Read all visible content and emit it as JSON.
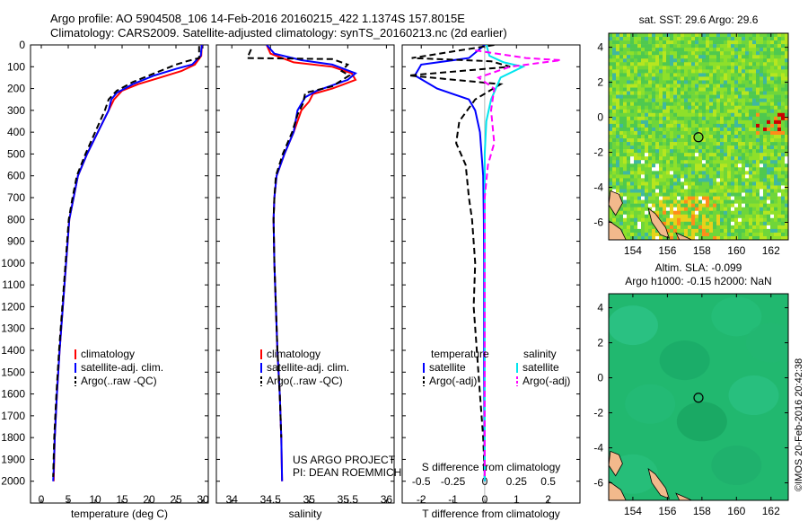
{
  "title_line1": "Argo profile: AO 5904508_106 14-Feb-2016 20160215_422 1.1374S 157.8015E",
  "title_line2": "Climatology: CARS2009. Satellite-adjusted climatology: synTS_20160213.nc (2d earlier)",
  "credit": "©IMOS 20-Feb-2016 20:42:38",
  "project_line1": "US ARGO PROJECT",
  "project_line2": "PI: DEAN ROEMMICH",
  "colors": {
    "climatology": "#ff0000",
    "satellite": "#0000ff",
    "argo": "#000000",
    "satellite_s": "#00e5ee",
    "argo_s": "#ff00ff"
  },
  "chart_data": [
    {
      "type": "line",
      "xlabel": "temperature (deg C)",
      "xlim": [
        -2,
        31
      ],
      "xticks": [
        0,
        5,
        10,
        15,
        20,
        25,
        30
      ],
      "ylim": [
        0,
        2100
      ],
      "yticks": [
        0,
        100,
        200,
        300,
        400,
        500,
        600,
        700,
        800,
        900,
        1000,
        1100,
        1200,
        1300,
        1400,
        1500,
        1600,
        1700,
        1800,
        1900,
        2000
      ],
      "legend": [
        "climatology",
        "satellite-adj. clim.",
        "Argo(..raw -QC)"
      ],
      "legend_position": "lower-left",
      "series": [
        {
          "name": "climatology",
          "color": "#ff0000",
          "dashed": false,
          "points": [
            [
              29.8,
              0
            ],
            [
              29.7,
              50
            ],
            [
              28.5,
              90
            ],
            [
              26,
              120
            ],
            [
              22,
              150
            ],
            [
              18,
              180
            ],
            [
              15,
              210
            ],
            [
              13.5,
              250
            ],
            [
              12.5,
              300
            ],
            [
              10.5,
              400
            ],
            [
              8.5,
              500
            ],
            [
              6.8,
              600
            ],
            [
              6,
              700
            ],
            [
              5.2,
              800
            ],
            [
              4.6,
              1000
            ],
            [
              4,
              1200
            ],
            [
              3.4,
              1400
            ],
            [
              2.9,
              1600
            ],
            [
              2.5,
              1800
            ],
            [
              2.3,
              2000
            ]
          ]
        },
        {
          "name": "satellite-adj. clim.",
          "color": "#0000ff",
          "dashed": false,
          "points": [
            [
              29.8,
              0
            ],
            [
              29.6,
              50
            ],
            [
              28,
              90
            ],
            [
              25,
              110
            ],
            [
              21,
              140
            ],
            [
              17,
              180
            ],
            [
              14,
              220
            ],
            [
              13,
              250
            ],
            [
              12.5,
              300
            ],
            [
              10.5,
              400
            ],
            [
              8.5,
              500
            ],
            [
              6.8,
              600
            ],
            [
              6,
              700
            ],
            [
              5.2,
              800
            ],
            [
              4.6,
              1000
            ],
            [
              4,
              1200
            ],
            [
              3.4,
              1400
            ],
            [
              2.9,
              1600
            ],
            [
              2.5,
              1800
            ],
            [
              2.3,
              1950
            ],
            [
              2.2,
              2000
            ]
          ]
        },
        {
          "name": "Argo(..raw -QC)",
          "color": "#000000",
          "dashed": true,
          "points": [
            [
              29.3,
              5
            ],
            [
              29.3,
              60
            ],
            [
              27,
              75
            ],
            [
              25,
              90
            ],
            [
              21,
              130
            ],
            [
              17,
              170
            ],
            [
              14,
              210
            ],
            [
              12.5,
              250
            ],
            [
              11.8,
              300
            ],
            [
              10,
              400
            ],
            [
              8.2,
              500
            ],
            [
              6.6,
              600
            ],
            [
              5.8,
              700
            ],
            [
              5.1,
              800
            ],
            [
              4.5,
              1000
            ],
            [
              3.9,
              1200
            ],
            [
              3.3,
              1400
            ],
            [
              2.8,
              1600
            ],
            [
              2.4,
              1800
            ],
            [
              2.2,
              1980
            ]
          ]
        }
      ]
    },
    {
      "type": "line",
      "xlabel": "salinity",
      "xlim": [
        33.8,
        36.1
      ],
      "xticks": [
        34,
        34.5,
        35,
        35.5,
        36
      ],
      "ylim": [
        0,
        2100
      ],
      "legend": [
        "climatology",
        "satellite-adj. clim.",
        "Argo(..raw -QC)"
      ],
      "legend_position": "lower-left",
      "series": [
        {
          "name": "climatology",
          "color": "#ff0000",
          "dashed": false,
          "points": [
            [
              34.45,
              0
            ],
            [
              34.5,
              40
            ],
            [
              34.8,
              80
            ],
            [
              35.3,
              100
            ],
            [
              35.55,
              130
            ],
            [
              35.6,
              160
            ],
            [
              35.3,
              200
            ],
            [
              35.05,
              225
            ],
            [
              35,
              260
            ],
            [
              34.9,
              300
            ],
            [
              34.8,
              400
            ],
            [
              34.68,
              500
            ],
            [
              34.58,
              600
            ],
            [
              34.55,
              700
            ],
            [
              34.54,
              800
            ],
            [
              34.55,
              1000
            ],
            [
              34.57,
              1200
            ],
            [
              34.59,
              1400
            ],
            [
              34.62,
              1600
            ],
            [
              34.64,
              1800
            ],
            [
              34.65,
              2000
            ]
          ]
        },
        {
          "name": "satellite-adj. clim.",
          "color": "#0000ff",
          "dashed": false,
          "points": [
            [
              34.45,
              0
            ],
            [
              34.55,
              40
            ],
            [
              34.9,
              70
            ],
            [
              35.3,
              90
            ],
            [
              35.6,
              130
            ],
            [
              35.5,
              160
            ],
            [
              35.1,
              210
            ],
            [
              34.95,
              240
            ],
            [
              34.85,
              300
            ],
            [
              34.8,
              400
            ],
            [
              34.68,
              500
            ],
            [
              34.58,
              600
            ],
            [
              34.55,
              700
            ],
            [
              34.54,
              800
            ],
            [
              34.55,
              1000
            ],
            [
              34.57,
              1200
            ],
            [
              34.59,
              1400
            ],
            [
              34.62,
              1600
            ],
            [
              34.64,
              1800
            ],
            [
              34.65,
              2000
            ]
          ]
        },
        {
          "name": "Argo(..raw -QC)",
          "color": "#000000",
          "dashed": true,
          "points": [
            [
              34.25,
              20
            ],
            [
              34.2,
              60
            ],
            [
              35.3,
              65
            ],
            [
              35.5,
              90
            ],
            [
              35.42,
              120
            ],
            [
              35.52,
              140
            ],
            [
              35.3,
              190
            ],
            [
              34.95,
              220
            ],
            [
              34.92,
              270
            ],
            [
              34.85,
              320
            ],
            [
              34.78,
              400
            ],
            [
              34.66,
              500
            ],
            [
              34.57,
              600
            ],
            [
              34.55,
              700
            ],
            [
              34.54,
              800
            ],
            [
              34.55,
              1000
            ],
            [
              34.57,
              1200
            ],
            [
              34.59,
              1400
            ],
            [
              34.62,
              1600
            ],
            [
              34.64,
              1800
            ]
          ]
        }
      ]
    },
    {
      "type": "line",
      "xlabel": "T difference from climatology",
      "xlabel_top": "S difference from climatology",
      "xlim": [
        -2.6,
        3.0
      ],
      "xticks": [
        -2,
        -1,
        0,
        1,
        2
      ],
      "xticks_top": [
        -0.5,
        -0.25,
        0,
        0.25,
        0.5
      ],
      "ylim": [
        0,
        2100
      ],
      "legend_titles": [
        "temperature",
        "salinity"
      ],
      "legend": [
        "satellite",
        "Argo(-adj)",
        "satellite",
        "Argo(-adj)"
      ],
      "legend_position": "lower-center",
      "series": [
        {
          "name": "T satellite",
          "color": "#0000ff",
          "dashed": false,
          "points": [
            [
              0,
              0
            ],
            [
              -0.5,
              60
            ],
            [
              -2.0,
              90
            ],
            [
              -2.2,
              140
            ],
            [
              -1.5,
              200
            ],
            [
              -0.5,
              250
            ],
            [
              -0.3,
              300
            ],
            [
              -0.15,
              400
            ],
            [
              -0.1,
              500
            ],
            [
              -0.05,
              600
            ],
            [
              -0.03,
              800
            ],
            [
              -0.02,
              1000
            ],
            [
              -0.02,
              1500
            ],
            [
              0,
              2000
            ]
          ]
        },
        {
          "name": "T Argo(-adj)",
          "color": "#000000",
          "dashed": true,
          "points": [
            [
              0.3,
              0
            ],
            [
              -2.3,
              60
            ],
            [
              0.2,
              75
            ],
            [
              0.8,
              100
            ],
            [
              -2.4,
              140
            ],
            [
              0.5,
              180
            ],
            [
              -0.3,
              250
            ],
            [
              -0.8,
              350
            ],
            [
              -0.9,
              450
            ],
            [
              -0.6,
              550
            ],
            [
              -0.5,
              700
            ],
            [
              -0.4,
              800
            ],
            [
              -0.3,
              1000
            ],
            [
              -0.35,
              1200
            ],
            [
              -0.25,
              1400
            ],
            [
              -0.15,
              1600
            ],
            [
              -0.05,
              1800
            ],
            [
              0,
              1980
            ]
          ]
        },
        {
          "name": "S satellite",
          "color": "#00e5ee",
          "dashed": false,
          "points": [
            [
              0.05,
              0
            ],
            [
              0.15,
              50
            ],
            [
              0.6,
              80
            ],
            [
              1.2,
              100
            ],
            [
              0.5,
              150
            ],
            [
              0.2,
              250
            ],
            [
              0.05,
              350
            ],
            [
              0,
              500
            ],
            [
              0,
              1000
            ],
            [
              0,
              2000
            ]
          ]
        },
        {
          "name": "S Argo(-adj)",
          "color": "#ff00ff",
          "dashed": true,
          "points": [
            [
              -0.3,
              25
            ],
            [
              1.3,
              60
            ],
            [
              2.4,
              70
            ],
            [
              0.8,
              100
            ],
            [
              -0.2,
              150
            ],
            [
              0.3,
              200
            ],
            [
              0.2,
              300
            ],
            [
              0.3,
              450
            ],
            [
              0.1,
              550
            ],
            [
              0,
              700
            ],
            [
              0,
              1000
            ],
            [
              0,
              1500
            ],
            [
              0,
              1980
            ]
          ]
        }
      ]
    },
    {
      "type": "heatmap",
      "title": "sat. SST: 29.6 Argo: 29.6",
      "xlim": [
        152.6,
        163.0
      ],
      "ylim": [
        -7.0,
        4.8
      ],
      "xticks": [
        154,
        156,
        158,
        160,
        162
      ],
      "yticks": [
        -6,
        -4,
        -2,
        0,
        2,
        4
      ],
      "argo_position": [
        157.8,
        -1.14
      ]
    },
    {
      "type": "heatmap",
      "title_line1": "Altim. SLA: -0.099",
      "title_line2": "Argo h1000: -0.15 h2000: NaN",
      "xlim": [
        152.6,
        163.0
      ],
      "ylim": [
        -7.0,
        4.8
      ],
      "xticks": [
        154,
        156,
        158,
        160,
        162
      ],
      "yticks": [
        -6,
        -4,
        -2,
        0,
        2,
        4
      ],
      "argo_position": [
        157.8,
        -1.14
      ]
    }
  ]
}
